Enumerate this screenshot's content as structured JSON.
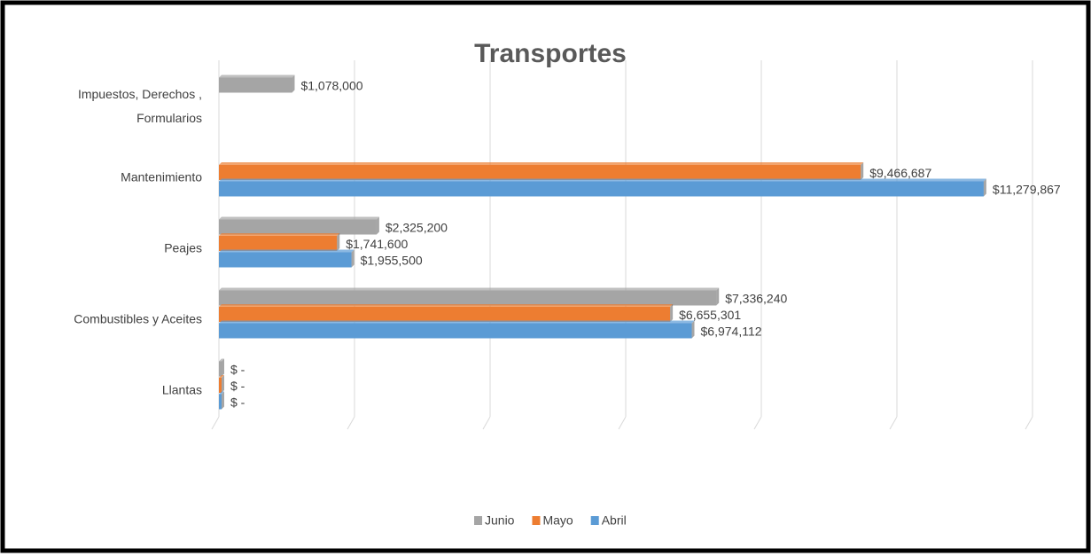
{
  "chart_data": {
    "type": "bar",
    "orientation": "horizontal",
    "title": "Transportes",
    "categories": [
      "Impuestos, Derechos , Formularios",
      "Mantenimiento",
      "Peajes",
      "Combustibles y Aceites",
      "Llantas"
    ],
    "series": [
      {
        "name": "Junio",
        "color": "#a5a5a5",
        "values": [
          1078000,
          null,
          2325200,
          7336240,
          0
        ],
        "value_labels": [
          "$1,078,000",
          null,
          "$2,325,200",
          "$7,336,240",
          "$ -"
        ]
      },
      {
        "name": "Mayo",
        "color": "#ed7d31",
        "values": [
          null,
          9466687,
          1741600,
          6655301,
          0
        ],
        "value_labels": [
          null,
          "$9,466,687",
          "$1,741,600",
          "$6,655,301",
          "$ -"
        ]
      },
      {
        "name": "Abril",
        "color": "#5b9bd5",
        "values": [
          null,
          11279867,
          1955500,
          6974112,
          0
        ],
        "value_labels": [
          null,
          "$11,279,867",
          "$1,955,500",
          "$6,974,112",
          "$ -"
        ]
      }
    ],
    "xlim": [
      0,
      12000000
    ],
    "xticks": [
      0,
      2000000,
      4000000,
      6000000,
      8000000,
      10000000,
      12000000
    ],
    "grid": true,
    "legend": "bottom"
  }
}
